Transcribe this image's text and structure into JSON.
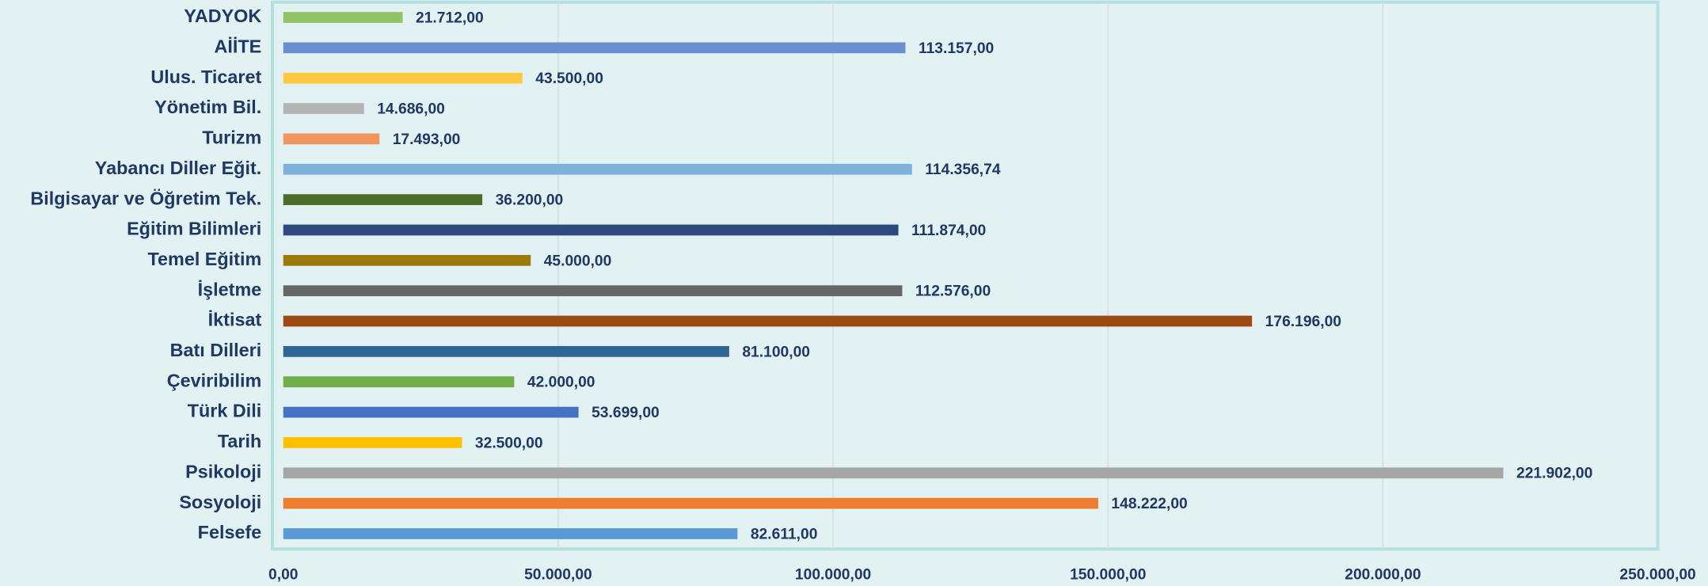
{
  "chart_data": {
    "type": "bar",
    "orientation": "horizontal",
    "categories": [
      "YADYOK",
      "AİİTE",
      "Ulus. Ticaret",
      "Yönetim Bil.",
      "Turizm",
      "Yabancı Diller Eğit.",
      "Bilgisayar ve Öğretim Tek.",
      "Eğitim Bilimleri",
      "Temel Eğitim",
      "İşletme",
      "İktisat",
      "Batı Dilleri",
      "Çeviribilim",
      "Türk Dili",
      "Tarih",
      "Psikoloji",
      "Sosyoloji",
      "Felsefe"
    ],
    "values": [
      21712,
      113157,
      43500,
      14686,
      17493,
      114356.74,
      36200,
      111874,
      45000,
      112576,
      176196,
      81100,
      42000,
      53699,
      32500,
      221902,
      148222,
      82611
    ],
    "value_labels": [
      "21.712,00",
      "113.157,00",
      "43.500,00",
      "14.686,00",
      "17.493,00",
      "114.356,74",
      "36.200,00",
      "111.874,00",
      "45.000,00",
      "112.576,00",
      "176.196,00",
      "81.100,00",
      "42.000,00",
      "53.699,00",
      "32.500,00",
      "221.902,00",
      "148.222,00",
      "82.611,00"
    ],
    "colors": [
      "#92c465",
      "#6a8fd0",
      "#ffc83d",
      "#b4b4b4",
      "#f0965e",
      "#7fb1dd",
      "#4a6e2a",
      "#2c4a7e",
      "#9c7a0a",
      "#666666",
      "#9e4812",
      "#2e6596",
      "#6fae48",
      "#4472c4",
      "#ffc000",
      "#a5a5a5",
      "#ed7d31",
      "#5b9bd5"
    ],
    "xlim": [
      0,
      250000
    ],
    "xticks": [
      {
        "value": 0,
        "label": "0,00"
      },
      {
        "value": 50000,
        "label": "50.000,00"
      },
      {
        "value": 100000,
        "label": "100.000,00"
      },
      {
        "value": 150000,
        "label": "150.000,00"
      },
      {
        "value": 200000,
        "label": "200.000,00"
      },
      {
        "value": 250000,
        "label": "250.000,00"
      }
    ],
    "grid": true
  }
}
